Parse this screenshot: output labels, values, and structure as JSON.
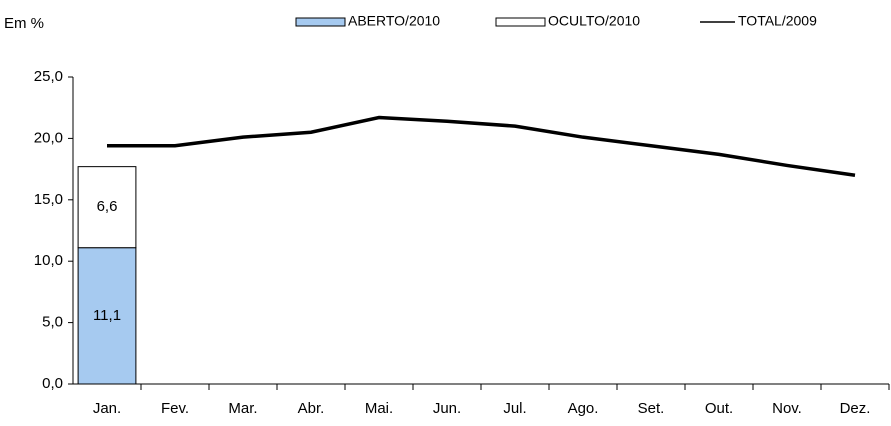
{
  "chart_data": {
    "type": "bar",
    "stacked": true,
    "y_label": "Em %",
    "categories": [
      "Jan.",
      "Fev.",
      "Mar.",
      "Abr.",
      "Mai.",
      "Jun.",
      "Jul.",
      "Ago.",
      "Set.",
      "Out.",
      "Nov.",
      "Dez."
    ],
    "series": [
      {
        "name": "ABERTO/2010",
        "type": "bar",
        "color": "#a6caf0",
        "values": [
          11.1,
          null,
          null,
          null,
          null,
          null,
          null,
          null,
          null,
          null,
          null,
          null
        ],
        "value_labels": [
          "11,1",
          null,
          null,
          null,
          null,
          null,
          null,
          null,
          null,
          null,
          null,
          null
        ]
      },
      {
        "name": "OCULTO/2010",
        "type": "bar",
        "color": "#ffffff",
        "values": [
          6.6,
          null,
          null,
          null,
          null,
          null,
          null,
          null,
          null,
          null,
          null,
          null
        ],
        "value_labels": [
          "6,6",
          null,
          null,
          null,
          null,
          null,
          null,
          null,
          null,
          null,
          null,
          null
        ]
      },
      {
        "name": "TOTAL/2009",
        "type": "line",
        "color": "#000000",
        "values": [
          19.4,
          19.4,
          20.1,
          20.5,
          21.7,
          21.4,
          21.0,
          20.1,
          19.4,
          18.7,
          17.8,
          17.0
        ]
      }
    ],
    "ylim": [
      0,
      25
    ],
    "yticks": [
      {
        "value": 0,
        "label": "0,0"
      },
      {
        "value": 5,
        "label": "5,0"
      },
      {
        "value": 10,
        "label": "10,0"
      },
      {
        "value": 15,
        "label": "15,0"
      },
      {
        "value": 20,
        "label": "20,0"
      },
      {
        "value": 25,
        "label": "25,0"
      }
    ],
    "grid": false,
    "legend": "top"
  }
}
